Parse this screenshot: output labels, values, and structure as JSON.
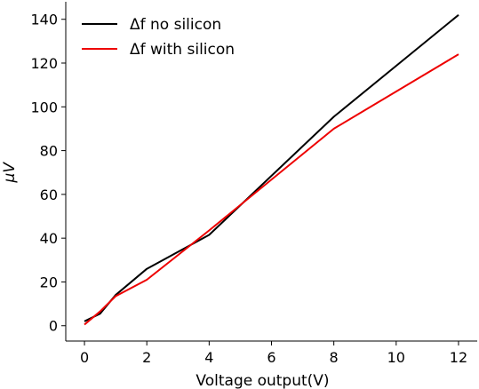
{
  "chart_data": {
    "type": "line",
    "title": "",
    "xlabel": "Voltage output(V)",
    "ylabel": "μV",
    "xlim": [
      -0.6,
      12.6
    ],
    "ylim": [
      -7,
      148
    ],
    "xticks": [
      0,
      2,
      4,
      6,
      8,
      10,
      12
    ],
    "yticks": [
      0,
      20,
      40,
      60,
      80,
      100,
      120,
      140
    ],
    "legend_position": "top-left",
    "grid": false,
    "series": [
      {
        "name": "Δf no silicon",
        "color": "#000000",
        "x": [
          0,
          0.5,
          1,
          2,
          4,
          8,
          12
        ],
        "y": [
          2,
          5.5,
          14,
          26,
          41.5,
          95.5,
          142
        ]
      },
      {
        "name": "Δf with silicon",
        "color": "#ee0000",
        "x": [
          0,
          0.5,
          1,
          2,
          4,
          8,
          12
        ],
        "y": [
          0.5,
          6.5,
          13.5,
          21,
          43.5,
          90,
          124
        ]
      }
    ]
  }
}
